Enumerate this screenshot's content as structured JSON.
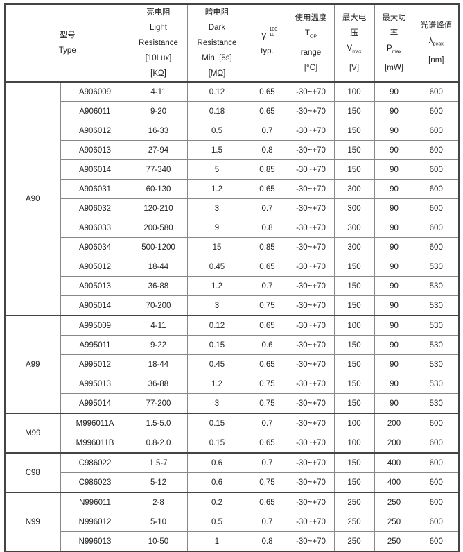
{
  "header": {
    "type": [
      "型号",
      "Type"
    ],
    "light": [
      "亮电阻",
      "Light",
      "Resistance",
      "[10Lux]",
      "[KΩ]"
    ],
    "dark": [
      "暗电阻",
      "Dark",
      "Resistance",
      "Min .[5s]",
      "[MΩ]"
    ],
    "gamma": {
      "symbol": "γ",
      "sup": "100",
      "sub": "10",
      "line2": "typ."
    },
    "temp": {
      "l1": "使用温度",
      "l2": "T",
      "l2sub": "OP",
      "l3": "range",
      "l4": "[°C]"
    },
    "vmax": {
      "l1": "最大电",
      "l2": "压",
      "l3": "V",
      "l3sub": "max",
      "l4": "[V]"
    },
    "pmax": {
      "l1": "最大功",
      "l2": "率",
      "l3": "P",
      "l3sub": "max",
      "l4": "[mW]"
    },
    "peak": {
      "l1": "光谱峰值",
      "l2": "λ",
      "l2sub": "peak",
      "l3": "[nm]"
    }
  },
  "groups": [
    {
      "name": "A90",
      "rows": [
        [
          "A906009",
          "4-11",
          "0.12",
          "0.65",
          "-30~+70",
          "100",
          "90",
          "600"
        ],
        [
          "A906011",
          "9-20",
          "0.18",
          "0.65",
          "-30~+70",
          "150",
          "90",
          "600"
        ],
        [
          "A906012",
          "16-33",
          "0.5",
          "0.7",
          "-30~+70",
          "150",
          "90",
          "600"
        ],
        [
          "A906013",
          "27-94",
          "1.5",
          "0.8",
          "-30~+70",
          "150",
          "90",
          "600"
        ],
        [
          "A906014",
          "77-340",
          "5",
          "0.85",
          "-30~+70",
          "150",
          "90",
          "600"
        ],
        [
          "A906031",
          "60-130",
          "1.2",
          "0.65",
          "-30~+70",
          "300",
          "90",
          "600"
        ],
        [
          "A906032",
          "120-210",
          "3",
          "0.7",
          "-30~+70",
          "300",
          "90",
          "600"
        ],
        [
          "A906033",
          "200-580",
          "9",
          "0.8",
          "-30~+70",
          "300",
          "90",
          "600"
        ],
        [
          "A906034",
          "500-1200",
          "15",
          "0.85",
          "-30~+70",
          "300",
          "90",
          "600"
        ],
        [
          "A905012",
          "18-44",
          "0.45",
          "0.65",
          "-30~+70",
          "150",
          "90",
          "530"
        ],
        [
          "A905013",
          "36-88",
          "1.2",
          "0.7",
          "-30~+70",
          "150",
          "90",
          "530"
        ],
        [
          "A905014",
          "70-200",
          "3",
          "0.75",
          "-30~+70",
          "150",
          "90",
          "530"
        ]
      ]
    },
    {
      "name": "A99",
      "rows": [
        [
          "A995009",
          "4-11",
          "0.12",
          "0.65",
          "-30~+70",
          "100",
          "90",
          "530"
        ],
        [
          "A995011",
          "9-22",
          "0.15",
          "0.6",
          "-30~+70",
          "150",
          "90",
          "530"
        ],
        [
          "A995012",
          "18-44",
          "0.45",
          "0.65",
          "-30~+70",
          "150",
          "90",
          "530"
        ],
        [
          "A995013",
          "36-88",
          "1.2",
          "0.75",
          "-30~+70",
          "150",
          "90",
          "530"
        ],
        [
          "A995014",
          "77-200",
          "3",
          "0.75",
          "-30~+70",
          "150",
          "90",
          "530"
        ]
      ]
    },
    {
      "name": "M99",
      "rows": [
        [
          "M996011A",
          "1.5-5.0",
          "0.15",
          "0.7",
          "-30~+70",
          "100",
          "200",
          "600"
        ],
        [
          "M996011B",
          "0.8-2.0",
          "0.15",
          "0.65",
          "-30~+70",
          "100",
          "200",
          "600"
        ]
      ]
    },
    {
      "name": "C98",
      "rows": [
        [
          "C986022",
          "1.5-7",
          "0.6",
          "0.7",
          "-30~+70",
          "150",
          "400",
          "600"
        ],
        [
          "C986023",
          "5-12",
          "0.6",
          "0.75",
          "-30~+70",
          "150",
          "400",
          "600"
        ]
      ]
    },
    {
      "name": "N99",
      "rows": [
        [
          "N996011",
          "2-8",
          "0.2",
          "0.65",
          "-30~+70",
          "250",
          "250",
          "600"
        ],
        [
          "N996012",
          "5-10",
          "0.5",
          "0.7",
          "-30~+70",
          "250",
          "250",
          "600"
        ],
        [
          "N996013",
          "10-50",
          "1",
          "0.8",
          "-30~+70",
          "250",
          "250",
          "600"
        ]
      ]
    }
  ]
}
